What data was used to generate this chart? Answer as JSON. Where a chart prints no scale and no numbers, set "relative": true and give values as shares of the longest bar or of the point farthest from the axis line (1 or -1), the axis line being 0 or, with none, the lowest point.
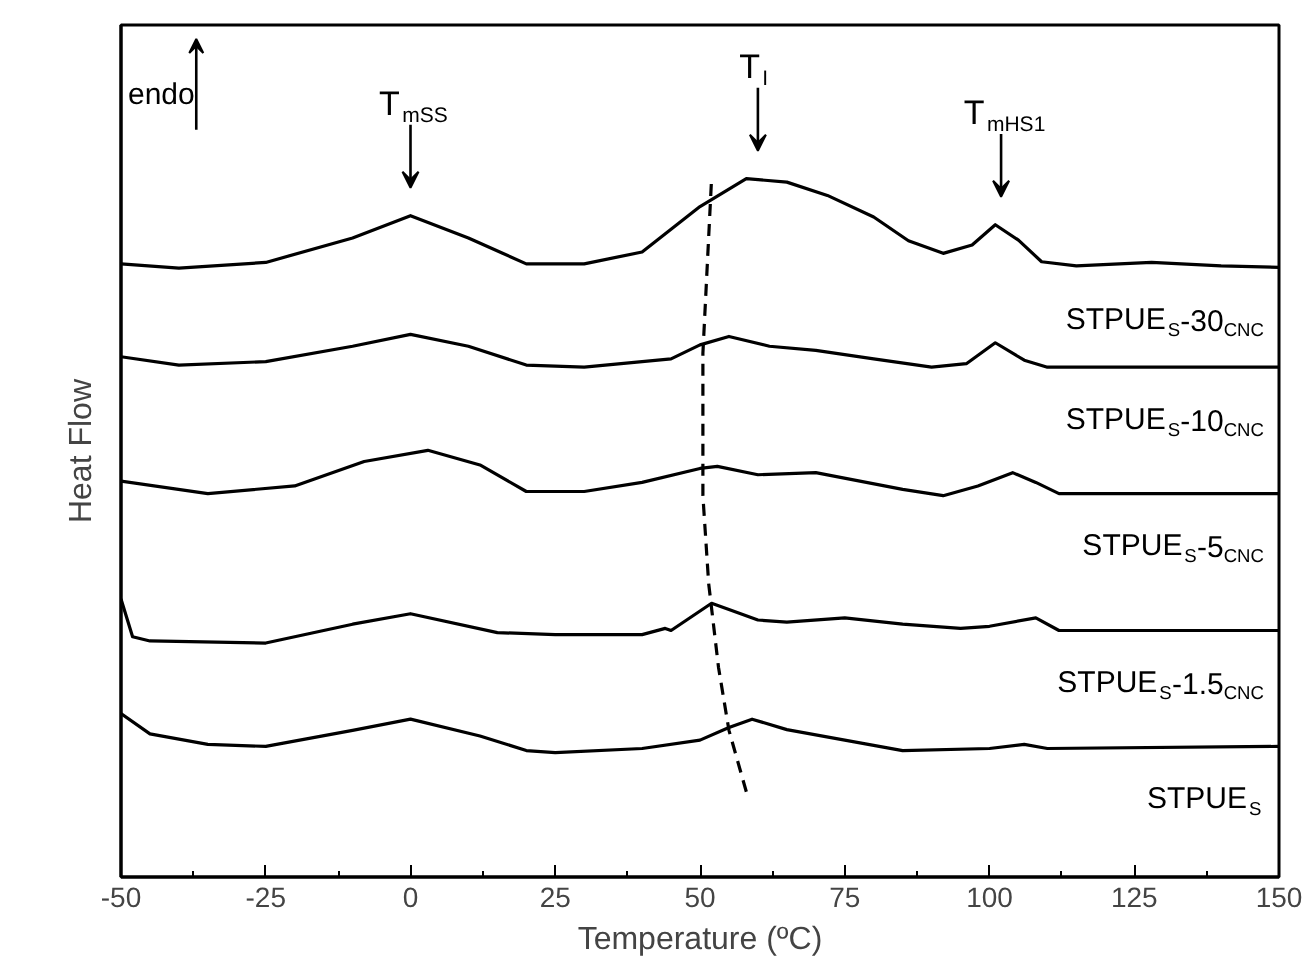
{
  "chart_data": {
    "type": "line",
    "relative": true,
    "xlabel": "Temperature (ºC)",
    "ylabel": "Heat Flow",
    "xlim": [
      -50,
      150
    ],
    "xticks": [
      -50,
      -25,
      0,
      25,
      50,
      75,
      100,
      125,
      150
    ],
    "tick_labels": "x",
    "grid": false,
    "marker": "none",
    "line_style": "solid",
    "series": [
      {
        "name": "STPUE$_{S}$-30$_{CNC}$",
        "color": "#000000",
        "x": [
          -50,
          -40,
          -25,
          -10,
          0,
          10,
          20,
          30,
          40,
          50,
          58,
          65,
          72,
          80,
          86,
          92,
          97,
          101,
          105,
          109,
          115,
          128,
          140,
          150
        ],
        "values": [
          0.878,
          0.872,
          0.88,
          0.915,
          0.947,
          0.915,
          0.878,
          0.878,
          0.895,
          0.96,
          1.0,
          0.995,
          0.976,
          0.945,
          0.911,
          0.893,
          0.905,
          0.934,
          0.912,
          0.881,
          0.875,
          0.88,
          0.875,
          0.873
        ]
      },
      {
        "name": "STPUE$_{S}$-10$_{CNC}$",
        "color": "#000000",
        "x": [
          -50,
          -40,
          -25,
          -10,
          0,
          10,
          20,
          30,
          45,
          50,
          55,
          62,
          70,
          80,
          90,
          96,
          101,
          106,
          110,
          150
        ],
        "values": [
          0.745,
          0.733,
          0.738,
          0.76,
          0.777,
          0.76,
          0.733,
          0.73,
          0.742,
          0.762,
          0.774,
          0.76,
          0.754,
          0.742,
          0.73,
          0.735,
          0.765,
          0.74,
          0.73,
          0.73
        ]
      },
      {
        "name": "STPUE$_{S}$-5$_{CNC}$",
        "color": "#000000",
        "x": [
          -50,
          -35,
          -20,
          -8,
          3,
          12,
          20,
          30,
          40,
          50,
          53,
          60,
          70,
          85,
          92,
          98,
          104,
          108,
          112,
          130,
          150
        ],
        "values": [
          0.567,
          0.549,
          0.56,
          0.595,
          0.611,
          0.59,
          0.552,
          0.552,
          0.565,
          0.585,
          0.588,
          0.576,
          0.579,
          0.555,
          0.546,
          0.56,
          0.579,
          0.565,
          0.549,
          0.549,
          0.549
        ]
      },
      {
        "name": "STPUE$_{S}$-1.5$_{CNC}$",
        "color": "#000000",
        "x": [
          -50,
          -48,
          -45,
          -25,
          -10,
          0,
          15,
          25,
          40,
          44,
          45,
          52,
          55,
          60,
          65,
          75,
          85,
          95,
          100,
          108,
          112,
          150
        ],
        "values": [
          0.398,
          0.344,
          0.338,
          0.335,
          0.362,
          0.377,
          0.35,
          0.347,
          0.347,
          0.356,
          0.353,
          0.392,
          0.383,
          0.368,
          0.365,
          0.371,
          0.362,
          0.356,
          0.359,
          0.371,
          0.353,
          0.353
        ]
      },
      {
        "name": "STPUE$_{S}$",
        "color": "#000000",
        "x": [
          -50,
          -45,
          -35,
          -25,
          -10,
          0,
          12,
          20,
          25,
          40,
          50,
          55,
          59,
          65,
          75,
          85,
          100,
          106,
          110,
          150
        ],
        "values": [
          0.234,
          0.205,
          0.19,
          0.187,
          0.21,
          0.226,
          0.202,
          0.181,
          0.178,
          0.184,
          0.196,
          0.214,
          0.226,
          0.211,
          0.196,
          0.181,
          0.184,
          0.19,
          0.184,
          0.187
        ]
      },
      {
        "type": "line",
        "line_style": "dashed",
        "color": "#000000",
        "x": [
          58,
          55,
          53.2,
          51.5,
          50.5,
          50.5,
          52
        ],
        "values": [
          0.122,
          0.21,
          0.3,
          0.42,
          0.546,
          0.75,
          1.0
        ]
      }
    ],
    "annotations": [
      "endo",
      {
        "text": "T$_{mSS}$",
        "x": 0,
        "y": 0.947
      },
      {
        "text": "T$_{I}$",
        "x": 60,
        "y": 1.0
      },
      {
        "text": "T$_{mHS1}$",
        "x": 102,
        "y": 0.934
      }
    ]
  }
}
